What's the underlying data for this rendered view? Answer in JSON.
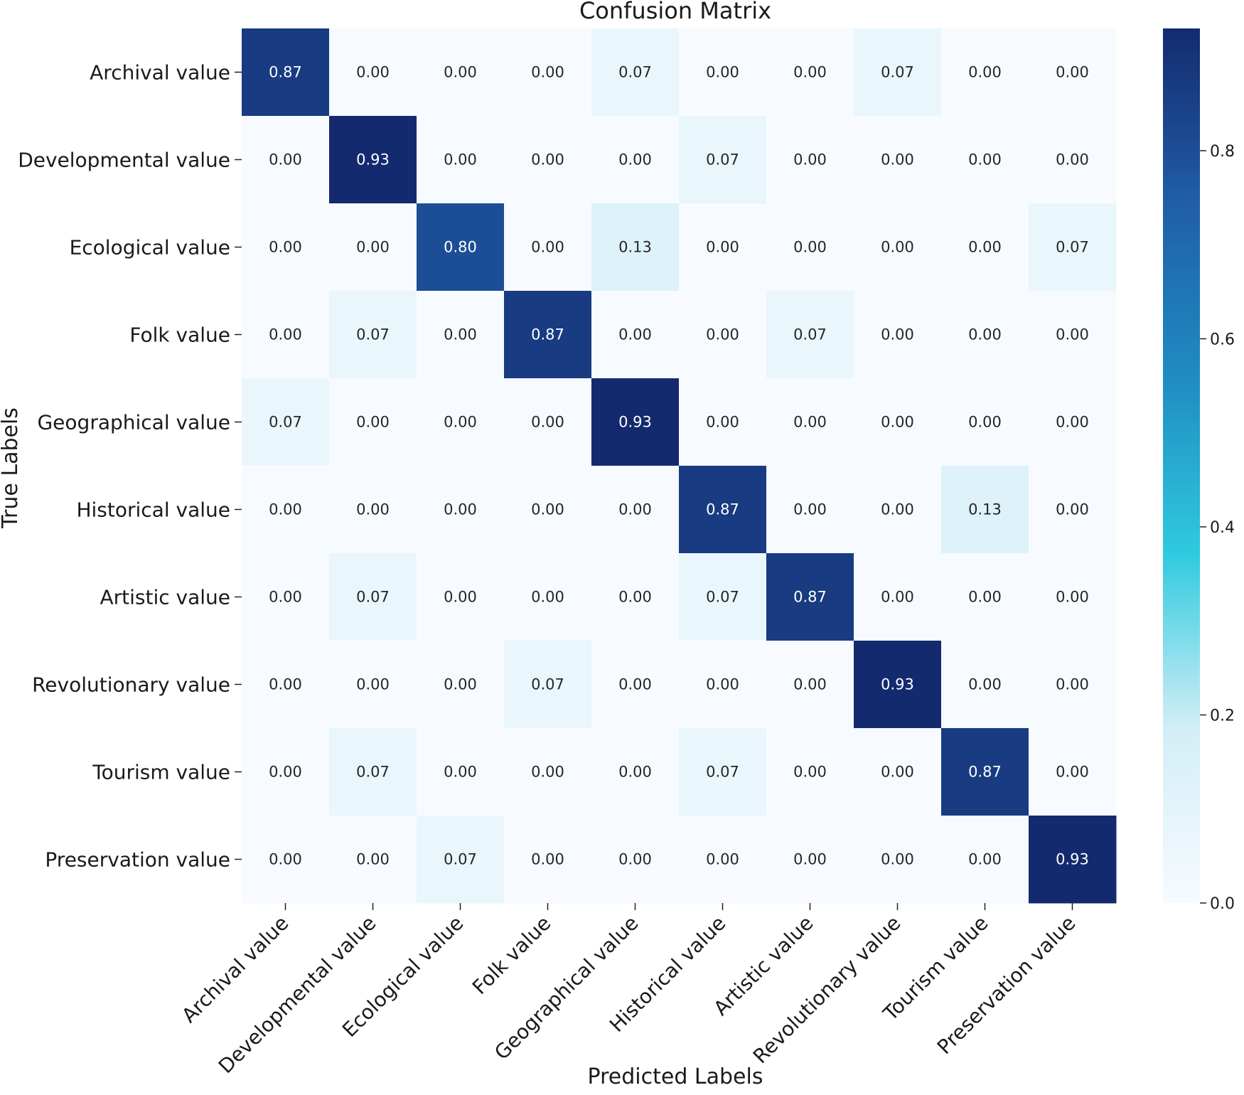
{
  "chart_data": {
    "type": "heatmap",
    "title": "Confusion Matrix",
    "xlabel": "Predicted Labels",
    "ylabel": "True Labels",
    "x_categories": [
      "Archival value",
      "Developmental value",
      "Ecological value",
      "Folk value",
      "Geographical value",
      "Historical value",
      "Artistic value",
      "Revolutionary value",
      "Tourism value",
      "Preservation value"
    ],
    "y_categories": [
      "Archival value",
      "Developmental value",
      "Ecological value",
      "Folk value",
      "Geographical value",
      "Historical value",
      "Artistic value",
      "Revolutionary value",
      "Tourism value",
      "Preservation value"
    ],
    "values": [
      [
        0.87,
        0.0,
        0.0,
        0.0,
        0.07,
        0.0,
        0.0,
        0.07,
        0.0,
        0.0
      ],
      [
        0.0,
        0.93,
        0.0,
        0.0,
        0.0,
        0.07,
        0.0,
        0.0,
        0.0,
        0.0
      ],
      [
        0.0,
        0.0,
        0.8,
        0.0,
        0.13,
        0.0,
        0.0,
        0.0,
        0.0,
        0.07
      ],
      [
        0.0,
        0.07,
        0.0,
        0.87,
        0.0,
        0.0,
        0.07,
        0.0,
        0.0,
        0.0
      ],
      [
        0.07,
        0.0,
        0.0,
        0.0,
        0.93,
        0.0,
        0.0,
        0.0,
        0.0,
        0.0
      ],
      [
        0.0,
        0.0,
        0.0,
        0.0,
        0.0,
        0.87,
        0.0,
        0.0,
        0.13,
        0.0
      ],
      [
        0.0,
        0.07,
        0.0,
        0.0,
        0.0,
        0.07,
        0.87,
        0.0,
        0.0,
        0.0
      ],
      [
        0.0,
        0.0,
        0.0,
        0.07,
        0.0,
        0.0,
        0.0,
        0.93,
        0.0,
        0.0
      ],
      [
        0.0,
        0.07,
        0.0,
        0.0,
        0.0,
        0.07,
        0.0,
        0.0,
        0.87,
        0.0
      ],
      [
        0.0,
        0.0,
        0.07,
        0.0,
        0.0,
        0.0,
        0.0,
        0.0,
        0.0,
        0.93
      ]
    ],
    "value_format": "0.00",
    "colorbar": {
      "range": [
        0.0,
        0.93
      ],
      "ticks": [
        0.0,
        0.2,
        0.4,
        0.6,
        0.8
      ],
      "tick_labels": [
        "0.0",
        "0.2",
        "0.4",
        "0.6",
        "0.8"
      ],
      "colormap": [
        "#f7fbff",
        "#d2eef6",
        "#2fcadf",
        "#1f8cc2",
        "#205ea8",
        "#142a6f"
      ]
    },
    "grid": false,
    "legend": "colorbar-right"
  }
}
